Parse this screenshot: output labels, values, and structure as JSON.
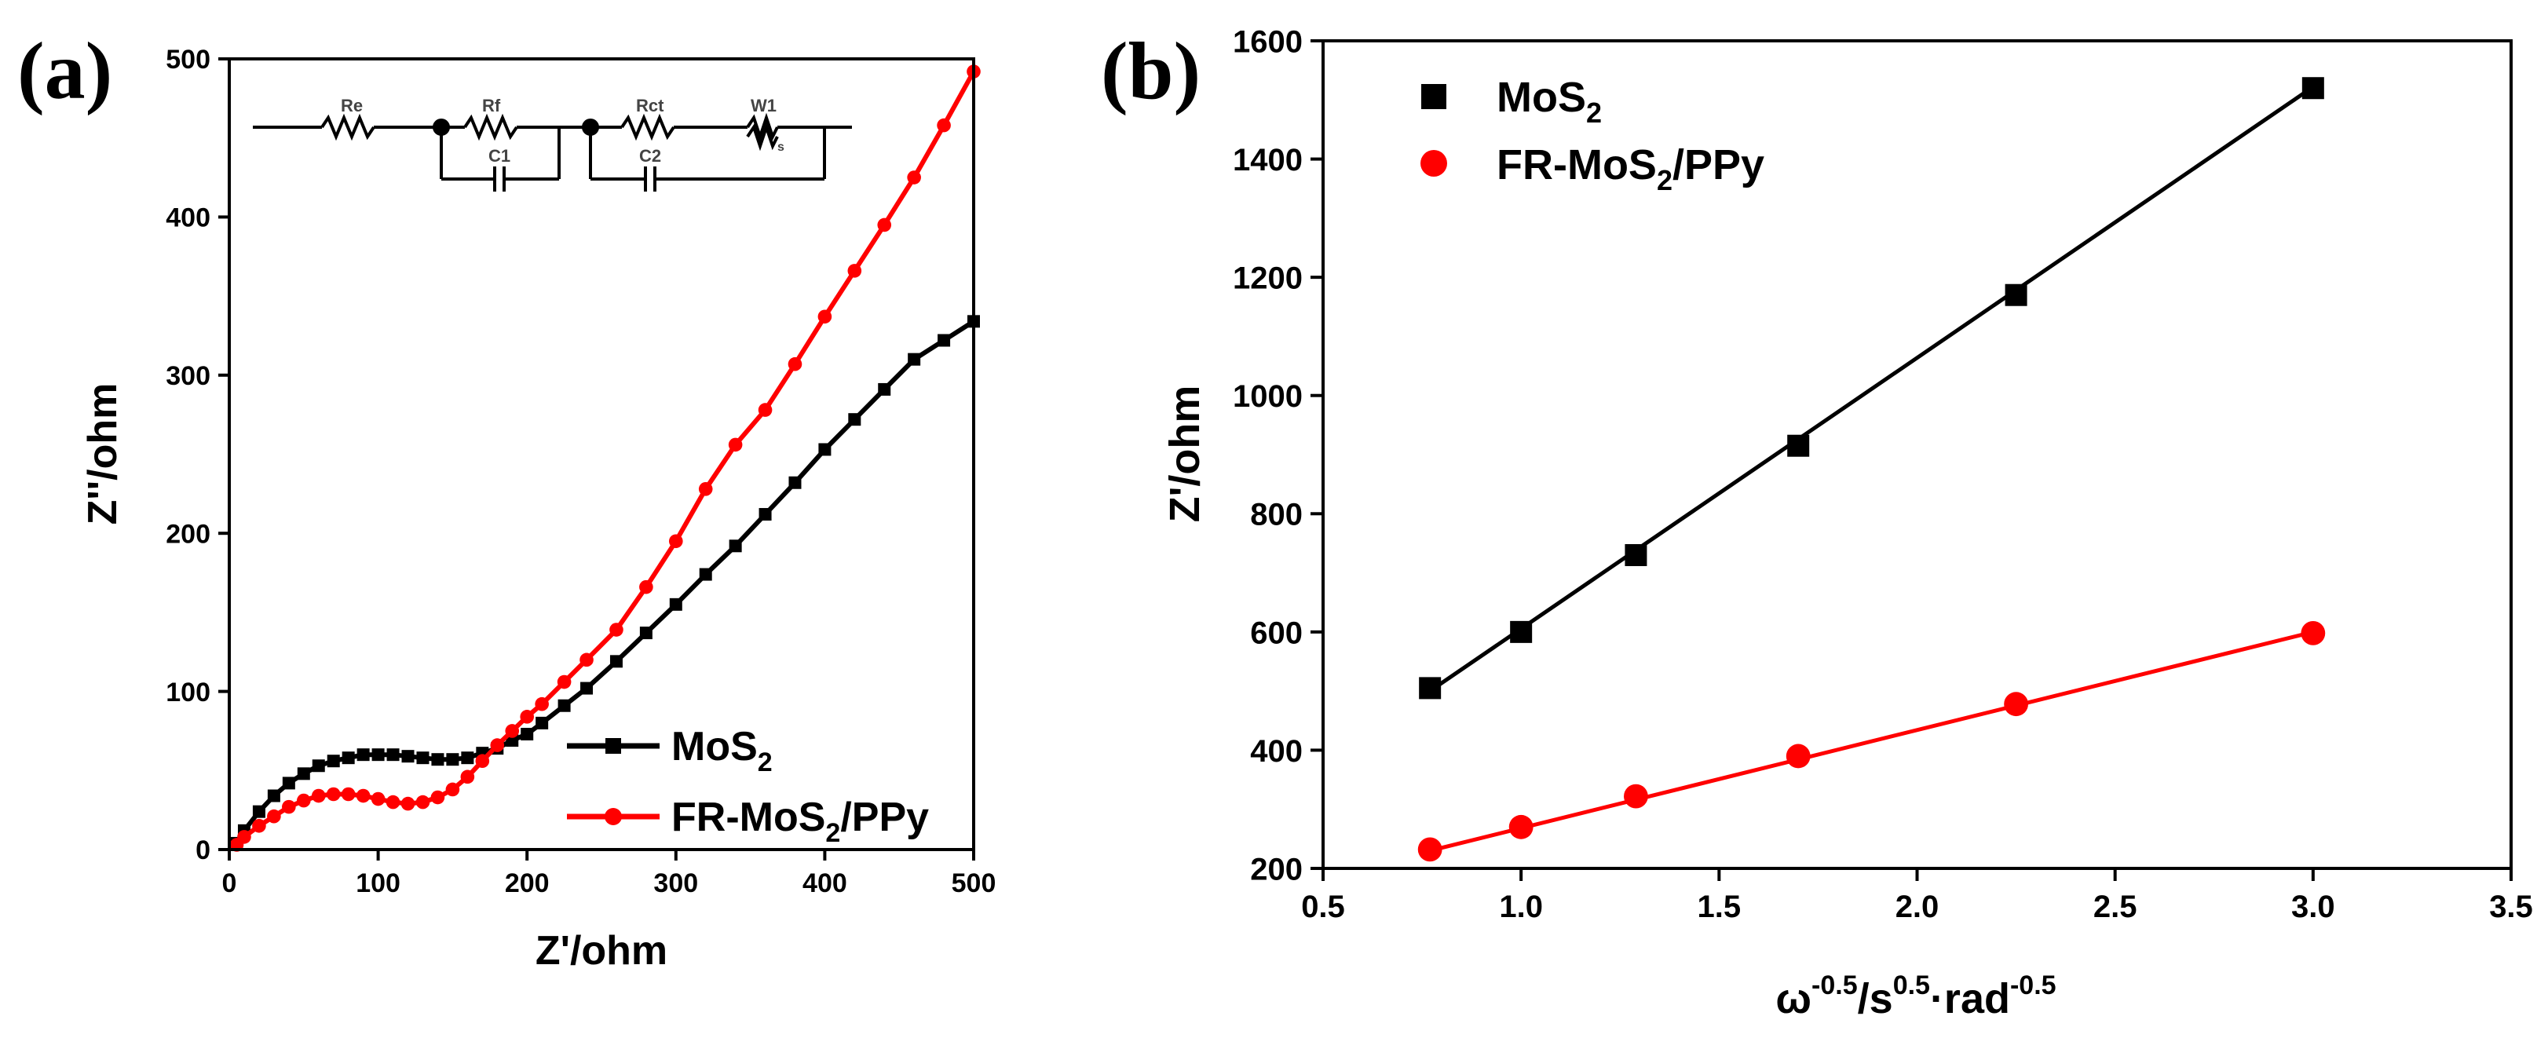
{
  "chart_data": [
    {
      "panel": "(a)",
      "type": "line",
      "title": "",
      "xlabel": "Z'/ohm",
      "ylabel": "Z''/ohm",
      "xlim": [
        0,
        500
      ],
      "ylim": [
        0,
        500
      ],
      "xticks": [
        0,
        100,
        200,
        300,
        400,
        500
      ],
      "yticks": [
        0,
        100,
        200,
        300,
        400,
        500
      ],
      "legend_position": "lower-right",
      "inset_circuit": {
        "description": "equivalent circuit",
        "labels": [
          "Re",
          "Rf",
          "C1",
          "Rct",
          "C2",
          "W1",
          "s"
        ]
      },
      "series": [
        {
          "name": "MoS2",
          "legend_main": "MoS",
          "legend_sub": "2",
          "legend_tail": "",
          "color": "#000000",
          "marker": "square",
          "x": [
            5,
            10,
            20,
            30,
            40,
            50,
            60,
            70,
            80,
            90,
            100,
            110,
            120,
            130,
            140,
            150,
            160,
            170,
            180,
            190,
            200,
            210,
            225,
            240,
            260,
            280,
            300,
            320,
            340,
            360,
            380,
            400,
            420,
            440,
            460,
            480,
            500
          ],
          "y": [
            4,
            12,
            24,
            34,
            42,
            48,
            53,
            56,
            58,
            60,
            60,
            60,
            59,
            58,
            57,
            57,
            58,
            61,
            64,
            69,
            73,
            80,
            91,
            102,
            119,
            137,
            155,
            174,
            192,
            212,
            232,
            253,
            272,
            291,
            310,
            322,
            334
          ]
        },
        {
          "name": "FR-MoS2/PPy",
          "legend_main": "FR-MoS",
          "legend_sub": "2",
          "legend_tail": "/PPy",
          "color": "#ff0000",
          "marker": "circle",
          "x": [
            5,
            10,
            20,
            30,
            40,
            50,
            60,
            70,
            80,
            90,
            100,
            110,
            120,
            130,
            140,
            150,
            160,
            170,
            180,
            190,
            200,
            210,
            225,
            240,
            260,
            280,
            300,
            320,
            340,
            360,
            380,
            400,
            420,
            440,
            460,
            480,
            500
          ],
          "y": [
            3,
            8,
            15,
            21,
            27,
            31,
            34,
            35,
            35,
            34,
            32,
            30,
            29,
            30,
            33,
            38,
            46,
            56,
            66,
            75,
            84,
            92,
            106,
            120,
            139,
            166,
            195,
            228,
            256,
            278,
            307,
            337,
            366,
            395,
            425,
            458,
            492
          ]
        }
      ]
    },
    {
      "panel": "(b)",
      "type": "scatter",
      "title": "",
      "xlabel_parts": [
        "ω",
        "-0.5",
        "/s",
        "0.5",
        "·rad",
        "-0.5"
      ],
      "ylabel": "Z'/ohm",
      "xlim": [
        0.5,
        3.5
      ],
      "ylim": [
        200,
        1600
      ],
      "xticks": [
        "0.5",
        "1.0",
        "1.5",
        "2.0",
        "2.5",
        "3.0",
        "3.5"
      ],
      "yticks": [
        200,
        400,
        600,
        800,
        1000,
        1200,
        1400,
        1600
      ],
      "legend_position": "top-left",
      "series": [
        {
          "name": "MoS2",
          "legend_main": "MoS",
          "legend_sub": "2",
          "legend_tail": "",
          "color": "#000000",
          "marker": "square",
          "x": [
            0.77,
            1.0,
            1.29,
            1.7,
            2.25,
            3.0
          ],
          "y": [
            505,
            600,
            730,
            915,
            1170,
            1520
          ],
          "fit": {
            "x": [
              0.77,
              3.0
            ],
            "y": [
              500,
              1522
            ]
          }
        },
        {
          "name": "FR-MoS2/PPy",
          "legend_main": "FR-MoS",
          "legend_sub": "2",
          "legend_tail": "/PPy",
          "color": "#ff0000",
          "marker": "circle",
          "x": [
            0.77,
            1.0,
            1.29,
            1.7,
            2.25,
            3.0
          ],
          "y": [
            232,
            270,
            322,
            390,
            478,
            598
          ],
          "fit": {
            "x": [
              0.77,
              3.0
            ],
            "y": [
              230,
              600
            ]
          }
        }
      ]
    }
  ]
}
